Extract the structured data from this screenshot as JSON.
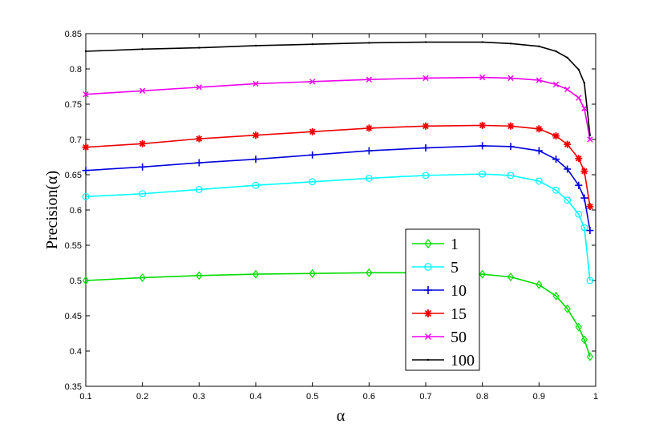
{
  "chart_data": {
    "type": "line",
    "title": "",
    "xlabel": "α",
    "ylabel": "Precision(α)",
    "xlim": [
      0.1,
      1.0
    ],
    "ylim": [
      0.35,
      0.85
    ],
    "xticks": [
      "0.1",
      "0.2",
      "0.3",
      "0.4",
      "0.5",
      "0.6",
      "0.7",
      "0.8",
      "0.9",
      "1"
    ],
    "yticks": [
      "0.35",
      "0.4",
      "0.45",
      "0.5",
      "0.55",
      "0.6",
      "0.65",
      "0.7",
      "0.75",
      "0.8",
      "0.85"
    ],
    "grid": false,
    "legend_position": "lower-center",
    "x": [
      0.1,
      0.2,
      0.3,
      0.4,
      0.5,
      0.6,
      0.7,
      0.8,
      0.85,
      0.9,
      0.93,
      0.95,
      0.97,
      0.98,
      0.99
    ],
    "series": [
      {
        "name": "1",
        "color": "#00dd00",
        "marker": "diamond",
        "values": [
          0.5,
          0.504,
          0.507,
          0.509,
          0.51,
          0.511,
          0.511,
          0.509,
          0.505,
          0.494,
          0.478,
          0.46,
          0.434,
          0.416,
          0.392
        ]
      },
      {
        "name": "5",
        "color": "#00ffff",
        "marker": "circle",
        "values": [
          0.619,
          0.623,
          0.629,
          0.635,
          0.64,
          0.645,
          0.649,
          0.651,
          0.649,
          0.641,
          0.628,
          0.614,
          0.594,
          0.575,
          0.5
        ]
      },
      {
        "name": "10",
        "color": "#0000dd",
        "marker": "plus",
        "values": [
          0.656,
          0.661,
          0.667,
          0.672,
          0.678,
          0.684,
          0.688,
          0.691,
          0.69,
          0.684,
          0.672,
          0.658,
          0.635,
          0.617,
          0.571
        ]
      },
      {
        "name": "15",
        "color": "#ee0000",
        "marker": "star",
        "values": [
          0.689,
          0.694,
          0.701,
          0.706,
          0.711,
          0.716,
          0.719,
          0.72,
          0.719,
          0.715,
          0.705,
          0.693,
          0.673,
          0.655,
          0.605
        ]
      },
      {
        "name": "50",
        "color": "#ee00ee",
        "marker": "x",
        "values": [
          0.764,
          0.769,
          0.774,
          0.779,
          0.782,
          0.785,
          0.787,
          0.788,
          0.787,
          0.784,
          0.778,
          0.771,
          0.759,
          0.744,
          0.7
        ]
      },
      {
        "name": "100",
        "color": "#000000",
        "marker": "dot",
        "values": [
          0.825,
          0.828,
          0.83,
          0.833,
          0.835,
          0.837,
          0.838,
          0.838,
          0.836,
          0.832,
          0.825,
          0.816,
          0.799,
          0.78,
          0.706
        ]
      }
    ]
  }
}
